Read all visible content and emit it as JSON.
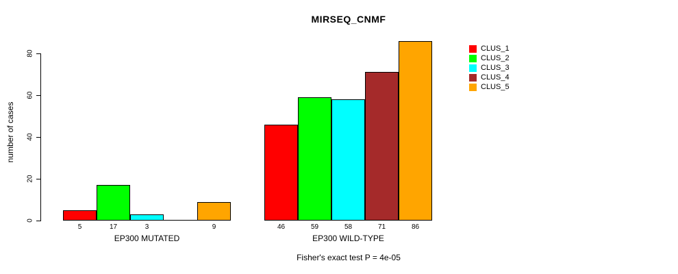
{
  "chart_data": {
    "type": "bar",
    "title": "MIRSEQ_CNMF",
    "ylabel": "number of cases",
    "xlabel": "",
    "footnote": "Fisher's exact test P = 4e-05",
    "ylim": [
      0,
      80
    ],
    "yticks": [
      0,
      20,
      40,
      60,
      80
    ],
    "grid": false,
    "legend_position": "right",
    "series": [
      {
        "name": "CLUS_1",
        "color": "#ff0000"
      },
      {
        "name": "CLUS_2",
        "color": "#00ff00"
      },
      {
        "name": "CLUS_3",
        "color": "#00ffff"
      },
      {
        "name": "CLUS_4",
        "color": "#a52a2a"
      },
      {
        "name": "CLUS_5",
        "color": "#ffa500"
      }
    ],
    "categories": [
      "EP300 MUTATED",
      "EP300 WILD-TYPE"
    ],
    "groups": [
      {
        "label": "EP300 MUTATED",
        "values": [
          5,
          17,
          3,
          0,
          9
        ],
        "bar_labels": [
          "5",
          "17",
          "3",
          "",
          "9"
        ]
      },
      {
        "label": "EP300 WILD-TYPE",
        "values": [
          46,
          59,
          58,
          71,
          86
        ],
        "bar_labels": [
          "46",
          "59",
          "58",
          "71",
          "86"
        ]
      }
    ]
  }
}
